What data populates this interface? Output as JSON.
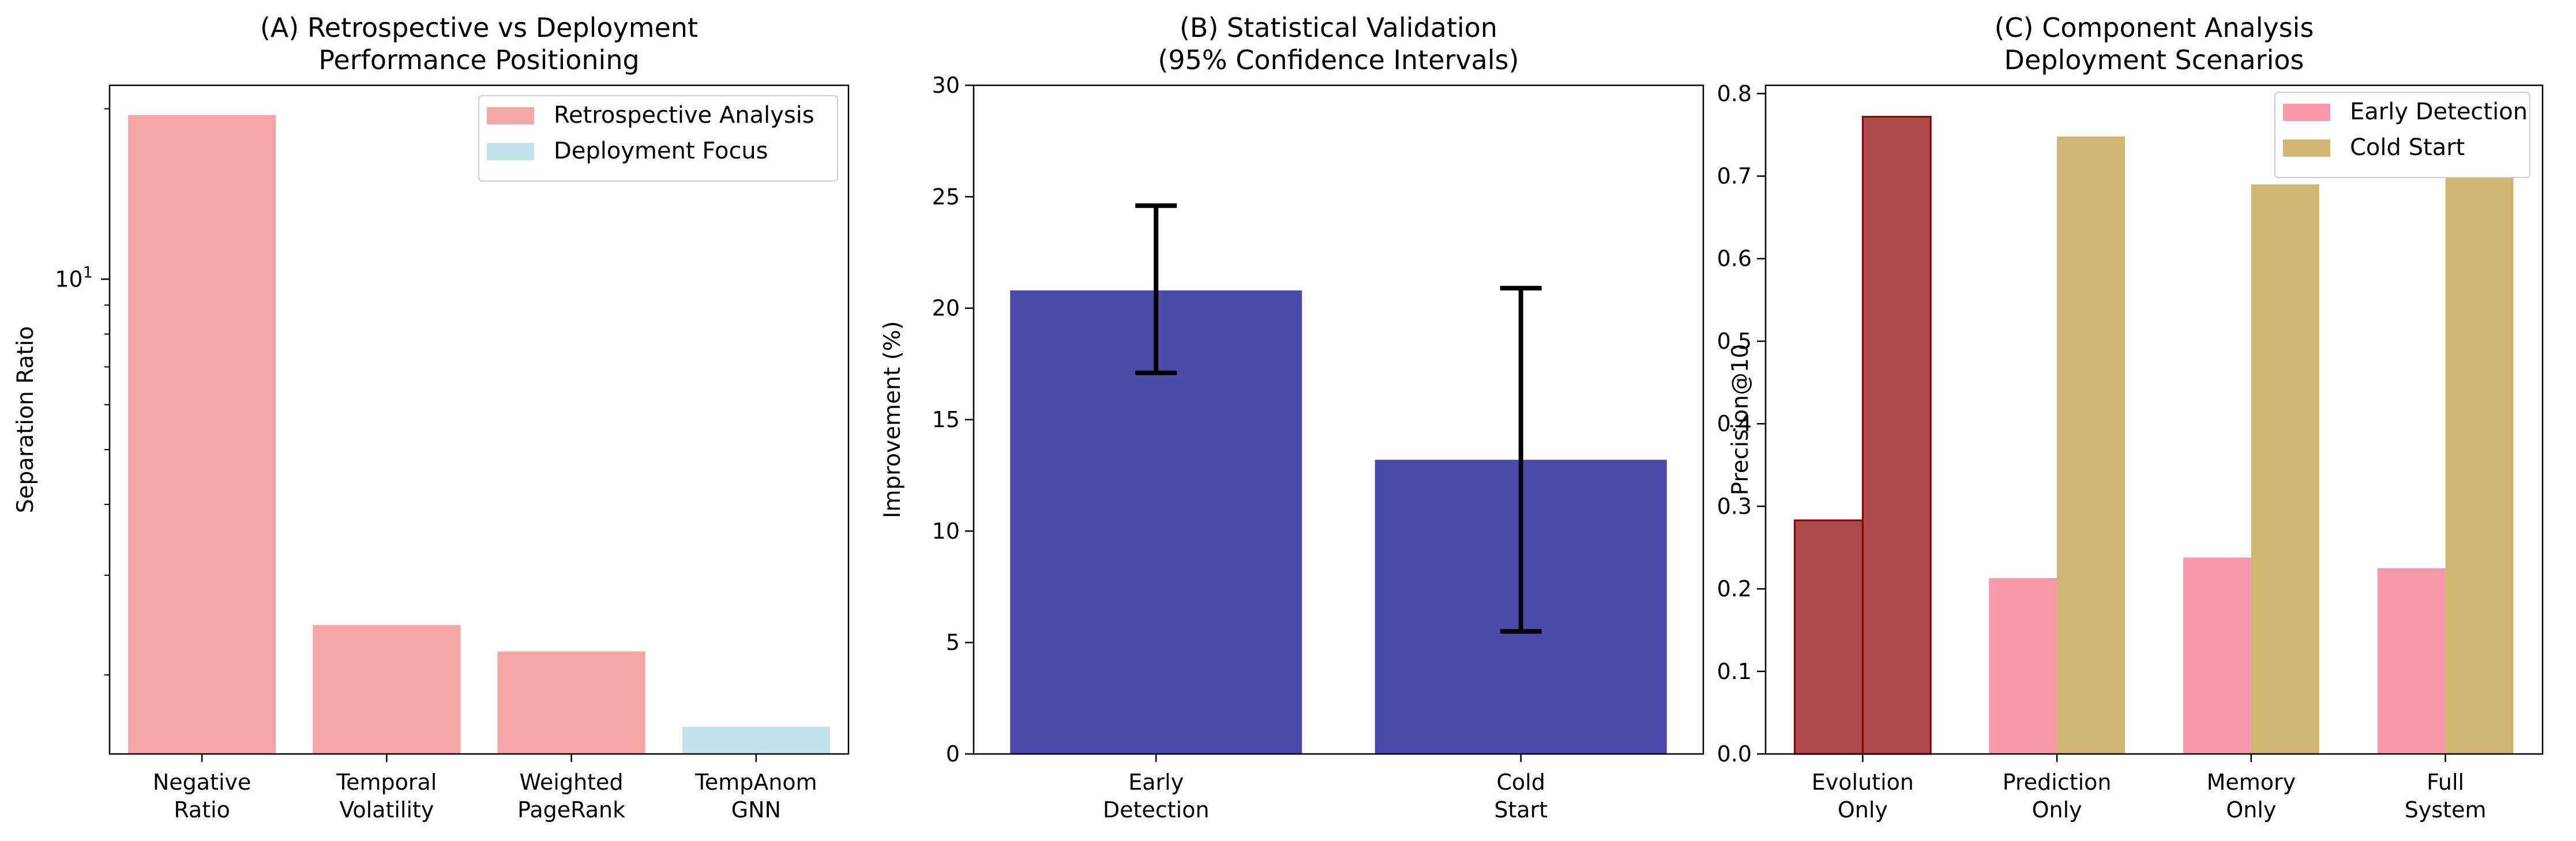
{
  "chart_data": [
    {
      "type": "bar",
      "title": [
        "(A) Retrospective vs Deployment",
        "Performance Positioning"
      ],
      "xlabel": "",
      "ylabel": "Separation Ratio",
      "yscale": "log",
      "ylim": [
        1.45,
        22
      ],
      "ytick_label": {
        "value": 10,
        "base": "10",
        "exp": "1"
      },
      "categories": [
        [
          "Negative",
          "Ratio"
        ],
        [
          "Temporal",
          "Volatility"
        ],
        [
          "Weighted",
          "PageRank"
        ],
        [
          "TempAnom",
          "GNN"
        ]
      ],
      "values": [
        19.5,
        2.45,
        2.2,
        1.62
      ],
      "bar_groups": [
        "Retrospective Analysis",
        "Retrospective Analysis",
        "Retrospective Analysis",
        "Deployment Focus"
      ],
      "legend": {
        "position": "top-right",
        "entries": [
          {
            "label": "Retrospective Analysis",
            "color": "#f4a6a6"
          },
          {
            "label": "Deployment Focus",
            "color": "#c3e3ec"
          }
        ]
      },
      "colors": {
        "retrospective": "#f4a6a6",
        "deployment": "#c3e3ec"
      }
    },
    {
      "type": "bar",
      "title": [
        "(B) Statistical Validation",
        "(95% Confidence Intervals)"
      ],
      "xlabel": "",
      "ylabel": "Improvement (%)",
      "ylim": [
        0,
        30
      ],
      "yticks": [
        "0",
        "5",
        "10",
        "15",
        "20",
        "25",
        "30"
      ],
      "categories": [
        [
          "Early",
          "Detection"
        ],
        [
          "Cold",
          "Start"
        ]
      ],
      "values": [
        20.8,
        13.2
      ],
      "error_bars": [
        [
          17.1,
          24.6
        ],
        [
          5.5,
          20.9
        ]
      ],
      "colors": {
        "bar": "#4b4bab",
        "error": "#000000"
      }
    },
    {
      "type": "bar",
      "title": [
        "(C) Component Analysis",
        "Deployment Scenarios"
      ],
      "xlabel": "",
      "ylabel": "Precision@10",
      "ylim": [
        0,
        0.81
      ],
      "yticks": [
        "0.0",
        "0.1",
        "0.2",
        "0.3",
        "0.4",
        "0.5",
        "0.6",
        "0.7",
        "0.8"
      ],
      "categories": [
        [
          "Evolution",
          "Only"
        ],
        [
          "Prediction",
          "Only"
        ],
        [
          "Memory",
          "Only"
        ],
        [
          "Full",
          "System"
        ]
      ],
      "series": [
        {
          "name": "Early Detection",
          "values": [
            0.283,
            0.213,
            0.238,
            0.225
          ]
        },
        {
          "name": "Cold Start",
          "values": [
            0.772,
            0.748,
            0.69,
            0.698
          ]
        }
      ],
      "highlight_category": 0,
      "legend": {
        "position": "top-right"
      },
      "colors": {
        "early": "#f799ab",
        "cold": "#cfb56f",
        "highlight": "#ae4a4d",
        "highlight_edge": "#8b0000"
      }
    }
  ]
}
